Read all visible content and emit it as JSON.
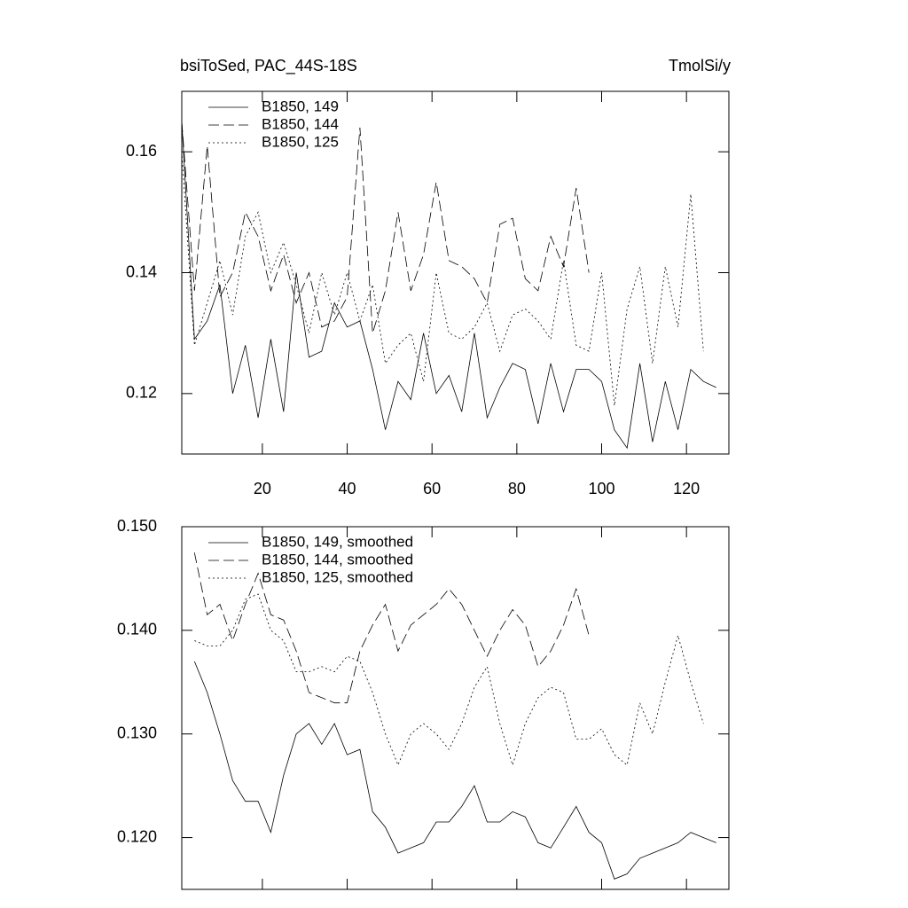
{
  "chart_data": [
    {
      "type": "line",
      "title": "bsiToSed, PAC_44S-18S",
      "units": "TmolSi/y",
      "x": [
        1,
        4,
        7,
        10,
        13,
        16,
        19,
        22,
        25,
        28,
        31,
        34,
        37,
        40,
        43,
        46,
        49,
        52,
        55,
        58,
        61,
        64,
        67,
        70,
        73,
        76,
        79,
        82,
        85,
        88,
        91,
        94,
        97,
        100,
        103,
        106,
        109,
        112,
        115,
        118,
        121,
        124,
        127
      ],
      "series": [
        {
          "name": "B1850, 149",
          "color": "#000000",
          "dash": "solid",
          "values": [
            0.165,
            0.129,
            0.132,
            0.138,
            0.12,
            0.128,
            0.116,
            0.129,
            0.117,
            0.14,
            0.126,
            0.127,
            0.135,
            0.131,
            0.132,
            0.124,
            0.114,
            0.122,
            0.119,
            0.13,
            0.12,
            0.123,
            0.117,
            0.13,
            0.116,
            0.121,
            0.125,
            0.124,
            0.115,
            0.125,
            0.117,
            0.124,
            0.124,
            0.122,
            0.114,
            0.111,
            0.125,
            0.112,
            0.122,
            0.114,
            0.124,
            0.122,
            0.121
          ]
        },
        {
          "name": "B1850, 144",
          "color": "#000000",
          "dash": "dashed",
          "values": [
            0.165,
            0.137,
            0.161,
            0.136,
            0.14,
            0.15,
            0.146,
            0.137,
            0.143,
            0.135,
            0.14,
            0.131,
            0.132,
            0.136,
            0.164,
            0.13,
            0.137,
            0.15,
            0.137,
            0.143,
            0.155,
            0.142,
            0.141,
            0.139,
            0.135,
            0.148,
            0.149,
            0.139,
            0.137,
            0.146,
            0.141,
            0.154,
            0.14,
            null,
            null,
            null,
            null,
            null,
            null,
            null,
            null,
            null,
            null
          ]
        },
        {
          "name": "B1850, 125",
          "color": "#000000",
          "dash": "dotted",
          "values": [
            0.16,
            0.128,
            0.135,
            0.142,
            0.133,
            0.146,
            0.15,
            0.14,
            0.145,
            0.138,
            0.13,
            0.14,
            0.133,
            0.14,
            0.132,
            0.138,
            0.125,
            0.128,
            0.13,
            0.122,
            0.14,
            0.13,
            0.129,
            0.131,
            0.135,
            0.127,
            0.133,
            0.134,
            0.132,
            0.129,
            0.142,
            0.128,
            0.127,
            0.14,
            0.118,
            0.134,
            0.141,
            0.125,
            0.141,
            0.131,
            0.153,
            0.127,
            null
          ]
        }
      ],
      "xlim": [
        1,
        130
      ],
      "xticks": [
        20,
        40,
        60,
        80,
        100,
        120
      ],
      "xtick_labels": true,
      "ylim": [
        0.11,
        0.17
      ],
      "yticks": [
        0.16,
        0.14,
        0.12
      ],
      "legend": "upper left"
    },
    {
      "type": "line",
      "x": [
        4,
        7,
        10,
        13,
        16,
        19,
        22,
        25,
        28,
        31,
        34,
        37,
        40,
        43,
        46,
        49,
        52,
        55,
        58,
        61,
        64,
        67,
        70,
        73,
        76,
        79,
        82,
        85,
        88,
        91,
        94,
        97,
        100,
        103,
        106,
        109,
        112,
        115,
        118,
        121,
        124,
        127
      ],
      "series": [
        {
          "name": "B1850, 149, smoothed",
          "color": "#000000",
          "dash": "solid",
          "values": [
            0.137,
            0.134,
            0.13,
            0.1255,
            0.1235,
            0.1235,
            0.1205,
            0.126,
            0.13,
            0.131,
            0.129,
            0.131,
            0.128,
            0.1285,
            0.1225,
            0.121,
            0.1185,
            0.119,
            0.1195,
            0.1215,
            0.1215,
            0.123,
            0.125,
            0.1215,
            0.1215,
            0.1225,
            0.122,
            0.1195,
            0.119,
            0.121,
            0.123,
            0.1205,
            0.1195,
            0.116,
            0.1165,
            0.118,
            0.1185,
            0.119,
            0.1195,
            0.1205,
            0.12,
            0.1195
          ]
        },
        {
          "name": "B1850, 144, smoothed",
          "color": "#000000",
          "dash": "dashed",
          "values": [
            0.1475,
            0.1415,
            0.1425,
            0.139,
            0.1425,
            0.1455,
            0.1415,
            0.141,
            0.138,
            0.134,
            0.1335,
            0.133,
            0.133,
            0.138,
            0.1405,
            0.1425,
            0.138,
            0.1405,
            0.1415,
            0.1425,
            0.144,
            0.1425,
            0.14,
            0.1375,
            0.14,
            0.142,
            0.1405,
            0.1365,
            0.138,
            0.1405,
            0.144,
            0.1395,
            null,
            null,
            null,
            null,
            null,
            null,
            null,
            null,
            null,
            null
          ]
        },
        {
          "name": "B1850, 125, smoothed",
          "color": "#000000",
          "dash": "dotted",
          "values": [
            0.139,
            0.1385,
            0.1385,
            0.14,
            0.143,
            0.1435,
            0.14,
            0.139,
            0.136,
            0.136,
            0.1365,
            0.136,
            0.1375,
            0.137,
            0.134,
            0.13,
            0.127,
            0.13,
            0.131,
            0.13,
            0.1285,
            0.131,
            0.1345,
            0.1365,
            0.131,
            0.127,
            0.131,
            0.1335,
            0.1345,
            0.134,
            0.1295,
            0.1295,
            0.1305,
            0.128,
            0.127,
            0.133,
            0.13,
            0.135,
            0.1395,
            0.135,
            0.131,
            null
          ]
        }
      ],
      "xlim": [
        1,
        130
      ],
      "xticks": [
        20,
        40,
        60,
        80,
        100,
        120
      ],
      "xtick_labels": false,
      "ylim": [
        0.115,
        0.15
      ],
      "yticks": [
        {
          "value": 0.15,
          "label": "0.150"
        },
        {
          "value": 0.14,
          "label": "0.140"
        },
        {
          "value": 0.13,
          "label": "0.130"
        },
        {
          "value": 0.12,
          "label": "0.120"
        }
      ],
      "legend": "upper left"
    }
  ]
}
